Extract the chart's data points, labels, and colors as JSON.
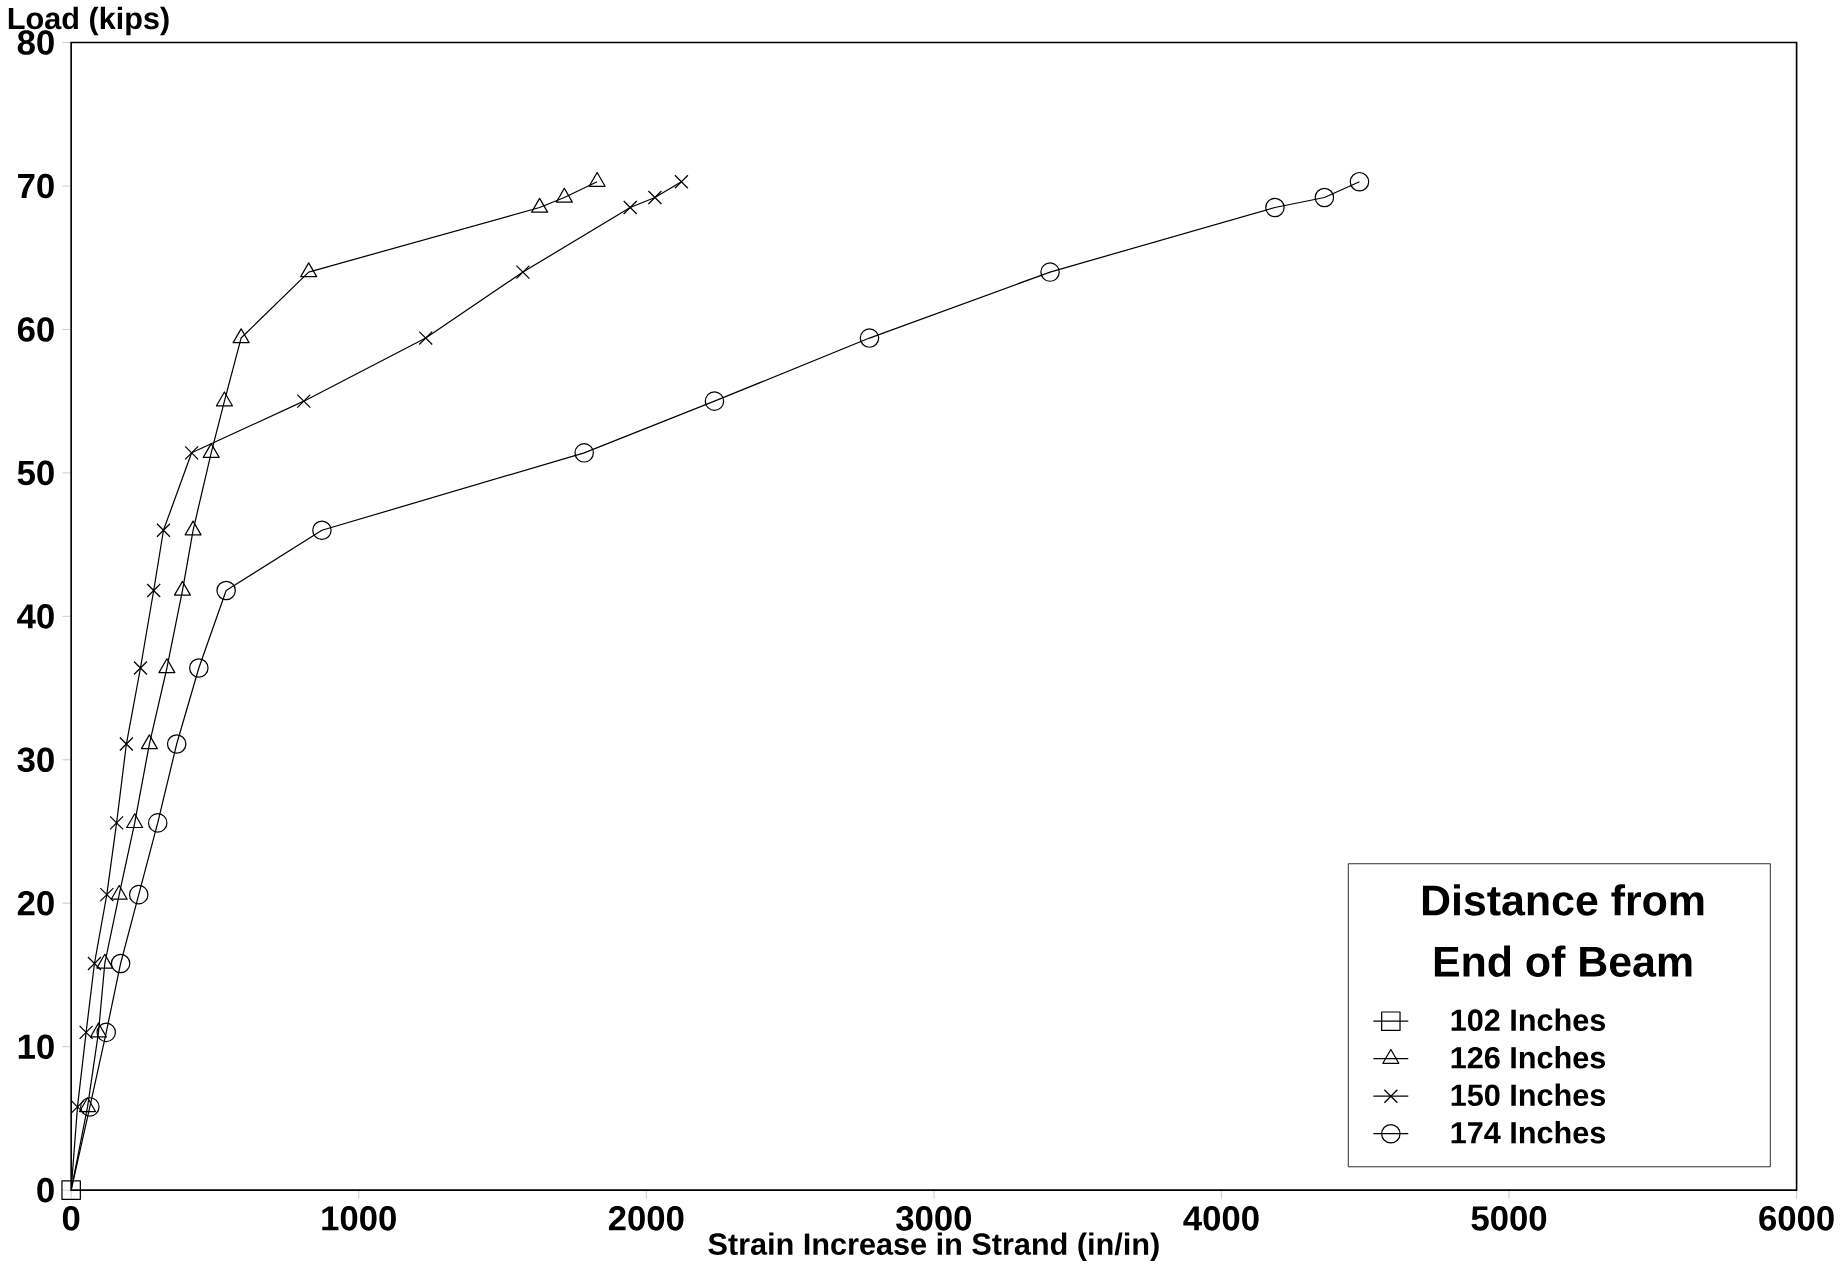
{
  "chart_data": {
    "type": "line",
    "xlabel": "Strain Increase in Strand (in/in)",
    "ylabel": "Load (kips)",
    "legend_title": "Distance from End of Beam",
    "xlim": [
      0,
      6000
    ],
    "ylim": [
      0,
      80
    ],
    "xticks": [
      0,
      1000,
      2000,
      3000,
      4000,
      5000,
      6000
    ],
    "yticks": [
      0,
      10,
      20,
      30,
      40,
      50,
      60,
      70,
      80
    ],
    "grid": false,
    "legend": "bottom right",
    "line_style": "solid",
    "series": [
      {
        "name": "102 Inches",
        "color": "#000000",
        "marker": "square",
        "x": [
          0
        ],
        "values": [
          0
        ]
      },
      {
        "name": "126 Inches",
        "color": "#000000",
        "marker": "triangle",
        "x": [
          0,
          57,
          95,
          117,
          167,
          221,
          272,
          333,
          387,
          424,
          487,
          533,
          591,
          826,
          1629,
          1715,
          1829
        ],
        "values": [
          0,
          5.8,
          11,
          15.8,
          20.6,
          25.6,
          31.1,
          36.4,
          41.8,
          46,
          51.4,
          55,
          59.4,
          64,
          68.5,
          69.2,
          70.3
        ]
      },
      {
        "name": "150 Inches",
        "color": "#000000",
        "marker": "cross",
        "x": [
          0,
          22,
          52,
          81,
          124,
          158,
          192,
          241,
          287,
          321,
          419,
          809,
          1233,
          1571,
          1944,
          2030,
          2122
        ],
        "values": [
          0,
          5.8,
          11,
          15.8,
          20.6,
          25.6,
          31.1,
          36.4,
          41.8,
          46,
          51.4,
          55,
          59.4,
          64,
          68.5,
          69.2,
          70.3
        ]
      },
      {
        "name": "174 Inches",
        "color": "#000000",
        "marker": "circle",
        "x": [
          0,
          65,
          122,
          172,
          235,
          301,
          367,
          444,
          539,
          872,
          1784,
          2237,
          2776,
          3404,
          4186,
          4358,
          4480
        ],
        "values": [
          0,
          5.8,
          11,
          15.8,
          20.6,
          25.6,
          31.1,
          36.4,
          41.8,
          46,
          51.4,
          55,
          59.4,
          64,
          68.5,
          69.2,
          70.3
        ]
      }
    ]
  }
}
